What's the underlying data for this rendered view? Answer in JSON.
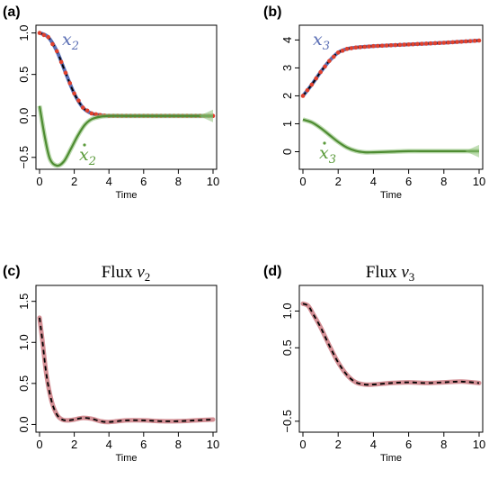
{
  "chart_data": [
    {
      "panel": "(a)",
      "type": "line",
      "xlabel": "Time",
      "xlim": [
        0,
        10
      ],
      "ylim": [
        -0.6,
        1.05
      ],
      "xticks": [
        0,
        2,
        4,
        6,
        8,
        10
      ],
      "yticks": [
        -0.5,
        0.0,
        0.5,
        1.0
      ],
      "ytick_labels": [
        "−0.5",
        "0.0",
        "0.5",
        "1.0"
      ],
      "series": [
        {
          "name": "x2",
          "label_var": "x",
          "label_sub": "2",
          "dot": false,
          "color": "#5b6fb5",
          "x": [
            0,
            0.5,
            1,
            1.5,
            2,
            2.5,
            3,
            3.5,
            4,
            5,
            6,
            7,
            8,
            9,
            10
          ],
          "y": [
            1.0,
            0.95,
            0.78,
            0.52,
            0.27,
            0.1,
            0.03,
            0.01,
            0.0,
            0.0,
            0.0,
            0.0,
            0.0,
            0.0,
            0.0
          ]
        },
        {
          "name": "x2dot",
          "label_var": "x",
          "label_sub": "2",
          "dot": true,
          "color": "#5a9a3a",
          "x": [
            0,
            0.3,
            0.6,
            1.0,
            1.4,
            1.8,
            2.2,
            2.6,
            3.0,
            3.5,
            4,
            5,
            6,
            7,
            8,
            9,
            10
          ],
          "y": [
            0.12,
            -0.25,
            -0.52,
            -0.6,
            -0.55,
            -0.4,
            -0.24,
            -0.11,
            -0.04,
            -0.01,
            0.0,
            0.0,
            0.0,
            0.0,
            0.0,
            0.0,
            0.0
          ]
        }
      ]
    },
    {
      "panel": "(b)",
      "type": "line",
      "xlabel": "Time",
      "xlim": [
        0,
        10
      ],
      "ylim": [
        -0.5,
        4.4
      ],
      "xticks": [
        0,
        2,
        4,
        6,
        8,
        10
      ],
      "yticks": [
        0,
        1,
        2,
        3,
        4
      ],
      "ytick_labels": [
        "0",
        "1",
        "2",
        "3",
        "4"
      ],
      "series": [
        {
          "name": "x3",
          "label_var": "x",
          "label_sub": "3",
          "dot": false,
          "color": "#5b6fb5",
          "x": [
            0,
            0.5,
            1,
            1.5,
            2,
            2.5,
            3,
            4,
            5,
            6,
            7,
            8,
            9,
            10
          ],
          "y": [
            2.0,
            2.4,
            2.85,
            3.25,
            3.55,
            3.68,
            3.73,
            3.78,
            3.81,
            3.84,
            3.87,
            3.9,
            3.94,
            3.98
          ]
        },
        {
          "name": "x3dot",
          "label_var": "x",
          "label_sub": "3",
          "dot": true,
          "color": "#5a9a3a",
          "x": [
            0,
            0.5,
            1,
            1.5,
            2,
            2.5,
            3,
            3.5,
            4,
            5,
            6,
            7,
            8,
            9,
            10
          ],
          "y": [
            1.15,
            1.05,
            0.85,
            0.6,
            0.35,
            0.15,
            0.03,
            -0.02,
            -0.02,
            0.0,
            0.02,
            0.02,
            0.02,
            0.02,
            0.02
          ]
        }
      ]
    },
    {
      "panel": "(c)",
      "type": "line",
      "title_text": "Flux ",
      "title_var": "v",
      "title_sub": "2",
      "xlabel": "Time",
      "xlim": [
        0,
        10
      ],
      "ylim": [
        -0.05,
        1.65
      ],
      "xticks": [
        0,
        2,
        4,
        6,
        8,
        10
      ],
      "yticks": [
        0.0,
        0.5,
        1.0,
        1.5
      ],
      "ytick_labels": [
        "0.0",
        "0.5",
        "1.0",
        "1.5"
      ],
      "series": [
        {
          "name": "v2",
          "color": "#d48f95",
          "x": [
            0,
            0.15,
            0.4,
            0.7,
            1.0,
            1.3,
            1.6,
            2.0,
            2.5,
            3,
            3.5,
            4,
            5,
            6,
            7,
            8,
            9,
            10
          ],
          "y": [
            1.3,
            1.05,
            0.6,
            0.28,
            0.12,
            0.06,
            0.05,
            0.06,
            0.08,
            0.07,
            0.04,
            0.03,
            0.05,
            0.05,
            0.04,
            0.04,
            0.05,
            0.06
          ]
        }
      ]
    },
    {
      "panel": "(d)",
      "type": "line",
      "title_text": "Flux ",
      "title_var": "v",
      "title_sub": "3",
      "xlabel": "Time",
      "xlim": [
        0,
        10
      ],
      "ylim": [
        -0.6,
        1.3
      ],
      "xticks": [
        0,
        2,
        4,
        6,
        8,
        10
      ],
      "yticks": [
        -0.5,
        0.5,
        1.0
      ],
      "ytick_labels": [
        "−0.5",
        "0.5",
        "1.0"
      ],
      "series": [
        {
          "name": "v3",
          "color": "#d48f95",
          "x": [
            0,
            0.3,
            0.6,
            1.0,
            1.5,
            2.0,
            2.5,
            3.0,
            3.5,
            4,
            5,
            6,
            7,
            8,
            9,
            10
          ],
          "y": [
            1.1,
            1.07,
            0.95,
            0.78,
            0.53,
            0.3,
            0.13,
            0.03,
            0.0,
            0.0,
            0.02,
            0.03,
            0.02,
            0.03,
            0.04,
            0.02
          ]
        }
      ]
    }
  ]
}
